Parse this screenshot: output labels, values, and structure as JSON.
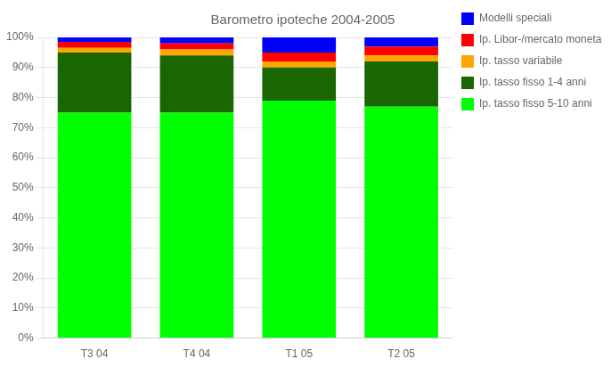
{
  "chart_data": {
    "type": "bar",
    "stacked": true,
    "title": "Barometro ipoteche 2004-2005",
    "categories": [
      "T3 04",
      "T4 04",
      "T1 05",
      "T2 05"
    ],
    "series": [
      {
        "name": "Ip. tasso fisso 5-10 anni",
        "color": "#00FF00",
        "values": [
          75,
          75,
          79,
          77
        ]
      },
      {
        "name": "Ip. tasso fisso 1-4 anni",
        "color": "#1A6600",
        "values": [
          20,
          19,
          11,
          15
        ]
      },
      {
        "name": "Ip. tasso variabile",
        "color": "#FFA500",
        "values": [
          1.5,
          2,
          2,
          2
        ]
      },
      {
        "name": "Ip. Libor-/mercato monetario",
        "color": "#FF0000",
        "values": [
          2,
          2,
          3,
          3
        ]
      },
      {
        "name": "Modelli speciali",
        "color": "#0000FF",
        "values": [
          1.5,
          2,
          5,
          3
        ]
      }
    ],
    "ylim": [
      0,
      100
    ],
    "yticks": [
      {
        "value": 0,
        "label": "0%"
      },
      {
        "value": 10,
        "label": "10%"
      },
      {
        "value": 20,
        "label": "20%"
      },
      {
        "value": 30,
        "label": "30%"
      },
      {
        "value": 40,
        "label": "40%"
      },
      {
        "value": 50,
        "label": "50%"
      },
      {
        "value": 60,
        "label": "60%"
      },
      {
        "value": 70,
        "label": "70%"
      },
      {
        "value": 80,
        "label": "80%"
      },
      {
        "value": 90,
        "label": "90%"
      },
      {
        "value": 100,
        "label": "100%"
      }
    ],
    "grid": true,
    "legend": "right"
  }
}
